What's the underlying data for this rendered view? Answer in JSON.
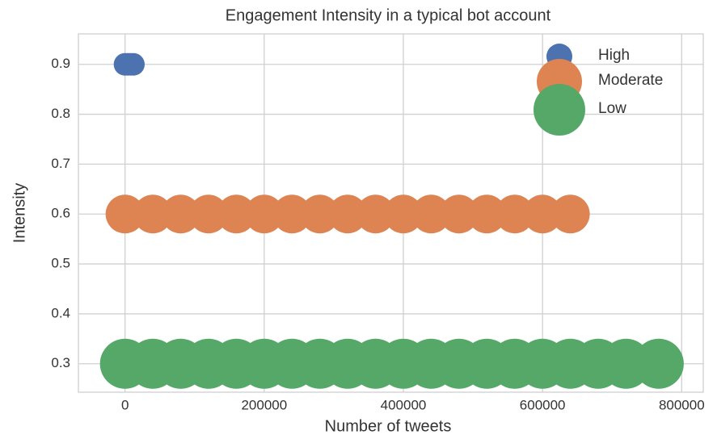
{
  "chart_data": {
    "type": "scatter",
    "title": "Engagement Intensity in a typical bot account",
    "xlabel": "Number of tweets",
    "ylabel": "Intensity",
    "xlim": [
      -67000,
      831000
    ],
    "ylim": [
      0.243,
      0.961
    ],
    "xticks": [
      0,
      200000,
      400000,
      600000,
      800000
    ],
    "yticks": [
      0.3,
      0.4,
      0.5,
      0.6,
      0.7,
      0.8,
      0.9
    ],
    "grid": true,
    "legend": "upper right",
    "series": [
      {
        "name": "High",
        "color": "#4c72b0",
        "x": [
          0,
          4000,
          8000,
          12000
        ],
        "y": [
          0.9,
          0.9,
          0.9,
          0.9
        ]
      },
      {
        "name": "Moderate",
        "color": "#dd8452",
        "x": [
          0,
          40000,
          80000,
          120000,
          160000,
          200000,
          240000,
          280000,
          320000,
          360000,
          400000,
          440000,
          480000,
          520000,
          560000,
          600000,
          640000
        ],
        "y": [
          0.6,
          0.6,
          0.6,
          0.6,
          0.6,
          0.6,
          0.6,
          0.6,
          0.6,
          0.6,
          0.6,
          0.6,
          0.6,
          0.6,
          0.6,
          0.6,
          0.6
        ]
      },
      {
        "name": "Low",
        "color": "#55a868",
        "x": [
          0,
          40000,
          80000,
          120000,
          160000,
          200000,
          240000,
          280000,
          320000,
          360000,
          400000,
          440000,
          480000,
          520000,
          560000,
          600000,
          640000,
          680000,
          720000,
          767000
        ],
        "y": [
          0.3,
          0.3,
          0.3,
          0.3,
          0.3,
          0.3,
          0.3,
          0.3,
          0.3,
          0.3,
          0.3,
          0.3,
          0.3,
          0.3,
          0.3,
          0.3,
          0.3,
          0.3,
          0.3,
          0.3
        ]
      }
    ]
  }
}
